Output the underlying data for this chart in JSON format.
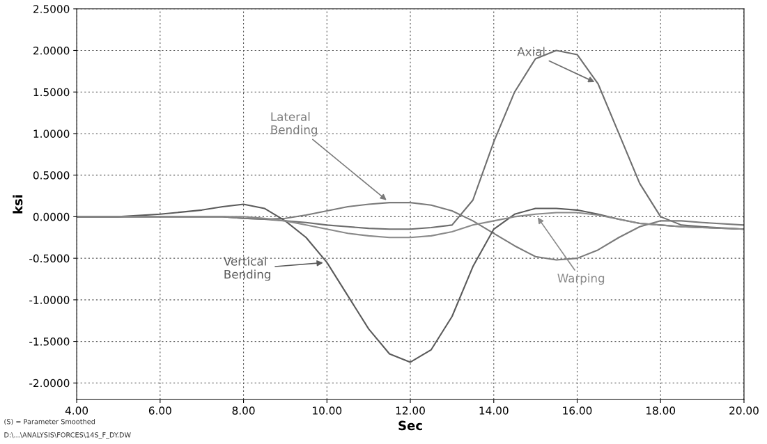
{
  "chart_data": {
    "type": "line",
    "xlabel": "Sec",
    "ylabel": "ksi",
    "x": [
      4,
      5,
      6,
      7,
      7.5,
      8,
      8.5,
      9,
      9.5,
      10,
      10.5,
      11,
      11.5,
      12,
      12.5,
      13,
      13.5,
      14,
      14.5,
      15,
      15.5,
      16,
      16.5,
      17,
      17.5,
      18,
      18.5,
      19,
      20
    ],
    "series": [
      {
        "name": "Axial",
        "color": "#6e6e6e",
        "values": [
          0,
          0,
          0,
          0,
          0,
          -0.02,
          -0.03,
          -0.05,
          -0.07,
          -0.1,
          -0.12,
          -0.14,
          -0.15,
          -0.15,
          -0.13,
          -0.1,
          0.2,
          0.9,
          1.5,
          1.9,
          2.0,
          1.95,
          1.6,
          1.0,
          0.4,
          0.0,
          -0.1,
          -0.12,
          -0.15
        ]
      },
      {
        "name": "Lateral Bending",
        "color": "#7a7a7a",
        "values": [
          0,
          0,
          0,
          0,
          0,
          -0.02,
          -0.03,
          -0.02,
          0.02,
          0.07,
          0.12,
          0.15,
          0.17,
          0.17,
          0.14,
          0.07,
          -0.05,
          -0.2,
          -0.35,
          -0.48,
          -0.52,
          -0.5,
          -0.4,
          -0.25,
          -0.12,
          -0.05,
          -0.05,
          -0.07,
          -0.1
        ]
      },
      {
        "name": "Vertical Bending",
        "color": "#5a5a5a",
        "values": [
          0,
          0,
          0.03,
          0.08,
          0.12,
          0.15,
          0.1,
          -0.05,
          -0.25,
          -0.55,
          -0.95,
          -1.35,
          -1.65,
          -1.75,
          -1.6,
          -1.2,
          -0.6,
          -0.15,
          0.03,
          0.1,
          0.1,
          0.08,
          0.03,
          -0.03,
          -0.08,
          -0.1,
          -0.12,
          -0.13,
          -0.15
        ]
      },
      {
        "name": "Warping",
        "color": "#8a8a8a",
        "values": [
          0,
          0,
          0,
          0,
          0,
          0,
          -0.02,
          -0.05,
          -0.1,
          -0.15,
          -0.2,
          -0.23,
          -0.25,
          -0.25,
          -0.23,
          -0.18,
          -0.1,
          -0.05,
          0.0,
          0.03,
          0.05,
          0.05,
          0.02,
          -0.03,
          -0.08,
          -0.1,
          -0.12,
          -0.13,
          -0.15
        ]
      }
    ],
    "xlim": [
      4,
      20
    ],
    "ylim": [
      -2.2,
      2.5
    ],
    "xticks": [
      {
        "value": 4,
        "label": "4.00"
      },
      {
        "value": 6,
        "label": "6.00"
      },
      {
        "value": 8,
        "label": "8.00"
      },
      {
        "value": 10,
        "label": "10.00"
      },
      {
        "value": 12,
        "label": "12.00"
      },
      {
        "value": 14,
        "label": "14.00"
      },
      {
        "value": 16,
        "label": "16.00"
      },
      {
        "value": 18,
        "label": "18.00"
      },
      {
        "value": 20,
        "label": "20.00"
      }
    ],
    "yticks": [
      {
        "value": -2,
        "label": "-2.0000"
      },
      {
        "value": -1.5,
        "label": "-1.5000"
      },
      {
        "value": -1,
        "label": "-1.0000"
      },
      {
        "value": -0.5,
        "label": "-0.5000"
      },
      {
        "value": 0,
        "label": "0.0000"
      },
      {
        "value": 0.5,
        "label": "0.5000"
      },
      {
        "value": 1,
        "label": "1.0000"
      },
      {
        "value": 1.5,
        "label": "1.5000"
      },
      {
        "value": 2,
        "label": "2.0000"
      },
      {
        "value": 2.5,
        "label": "2.5000"
      }
    ],
    "grid": true,
    "annotations": [
      "(S) = Parameter Smoothed",
      "D:\\...\\ANALYSIS\\FORCES\\14S_F_DY.DW"
    ]
  }
}
